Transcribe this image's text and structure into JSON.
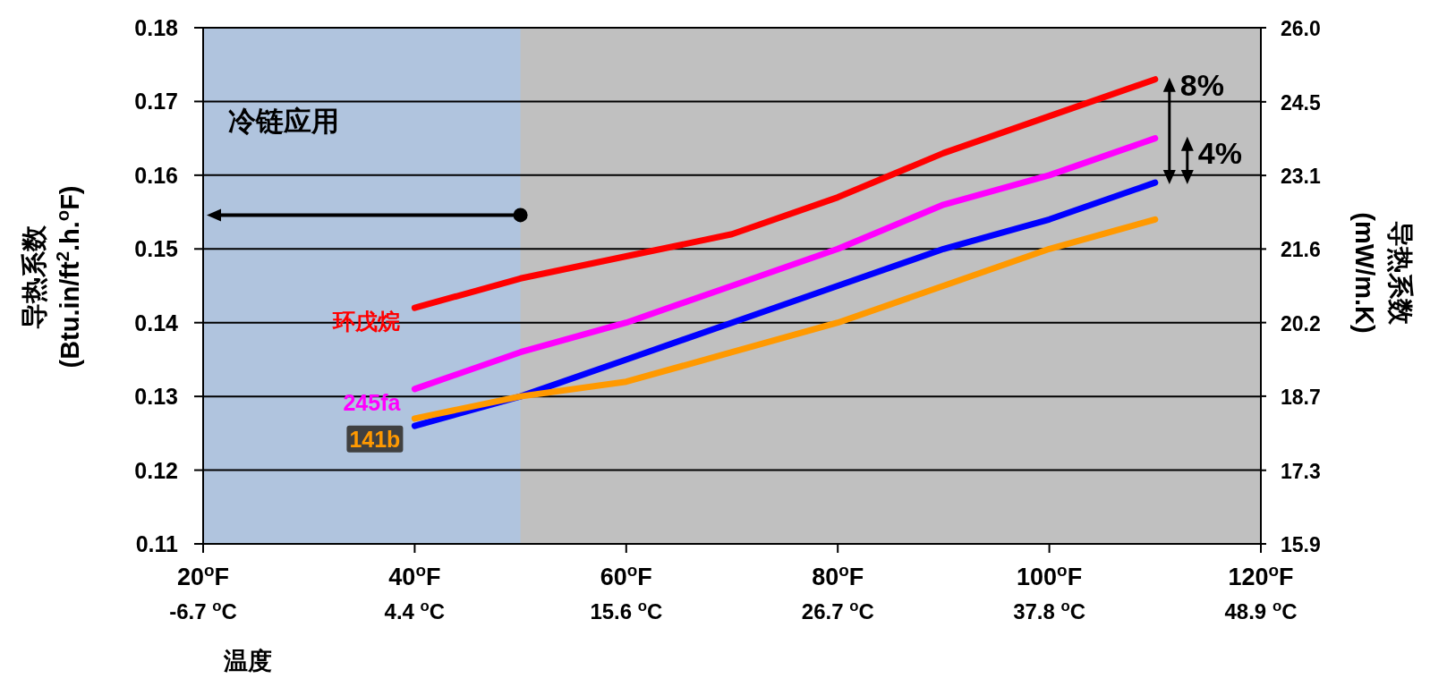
{
  "chart_data": {
    "type": "line",
    "xlabel": "温度",
    "ylabel": "导热系数\n(Btu.in/ft$^{2}$.h.$^{o}$F)",
    "y2label": "导热系数\n(mW/m.K)",
    "x": [
      40,
      50,
      60,
      70,
      80,
      90,
      100,
      110
    ],
    "series": [
      {
        "name": "环戊烷",
        "color": "#ff0000",
        "values": [
          0.142,
          0.146,
          0.149,
          0.152,
          0.157,
          0.163,
          0.168,
          0.173
        ]
      },
      {
        "name": "245fa",
        "color": "#ff00ff",
        "values": [
          0.131,
          0.136,
          0.14,
          0.145,
          0.15,
          0.156,
          0.16,
          0.165
        ]
      },
      {
        "color": "#0000ff",
        "values": [
          0.126,
          0.13,
          0.135,
          0.14,
          0.145,
          0.15,
          0.154,
          0.159
        ]
      },
      {
        "name": "141b",
        "color": "#ff9900",
        "values": [
          0.127,
          0.13,
          0.132,
          0.136,
          0.14,
          0.145,
          0.15,
          0.154
        ]
      }
    ],
    "xlim": [
      20,
      120
    ],
    "xticks": [
      {
        "value": 20,
        "label": "20$^{o}$F"
      },
      {
        "value": 40,
        "label": "40$^{o}$F"
      },
      {
        "value": 60,
        "label": "60$^{o}$F"
      },
      {
        "value": 80,
        "label": "80$^{o}$F"
      },
      {
        "value": 100,
        "label": "100$^{o}$F"
      },
      {
        "value": 120,
        "label": "120$^{o}$F"
      }
    ],
    "x2lim": [
      -6.67,
      48.89
    ],
    "x2ticks": [
      {
        "value": -6.67,
        "label": "-6.7 $^{o}$C"
      },
      {
        "value": 4.44,
        "label": "4.4 $^{o}$C"
      },
      {
        "value": 15.56,
        "label": "15.6 $^{o}$C"
      },
      {
        "value": 26.67,
        "label": "26.7 $^{o}$C"
      },
      {
        "value": 37.78,
        "label": "37.8 $^{o}$C"
      },
      {
        "value": 48.89,
        "label": "48.9 $^{o}$C"
      }
    ],
    "ylim": [
      0.11,
      0.18
    ],
    "yticks": [
      0.11,
      0.12,
      0.13,
      0.14,
      0.15,
      0.16,
      0.17,
      0.18
    ],
    "y2lim": [
      15.86,
      25.96
    ],
    "y2ticks": [
      {
        "value": 15.86,
        "label": "15.9"
      },
      {
        "value": 17.3,
        "label": "17.3"
      },
      {
        "value": 18.75,
        "label": "18.7"
      },
      {
        "value": 20.19,
        "label": "20.2"
      },
      {
        "value": 21.63,
        "label": "21.6"
      },
      {
        "value": 23.07,
        "label": "23.1"
      },
      {
        "value": 24.51,
        "label": "24.5"
      },
      {
        "value": 25.96,
        "label": "26.0"
      }
    ],
    "bands": [
      {
        "axis": "x",
        "from": 20,
        "to": 50,
        "label": "冷链应用",
        "color": "#b0c4de"
      }
    ],
    "annotations": [
      {
        "text": "8%",
        "x": 110,
        "y": 0.173
      },
      "4%"
    ],
    "grid": "y",
    "line_style": "solid"
  }
}
